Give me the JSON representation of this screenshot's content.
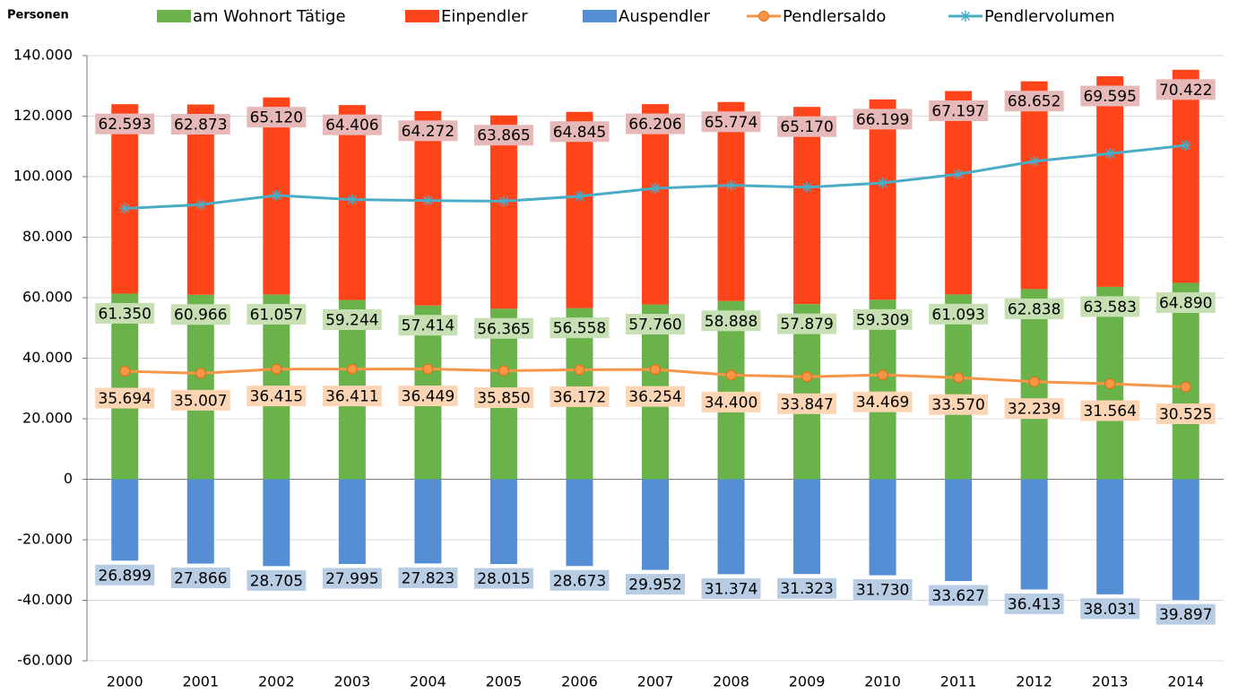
{
  "chart_data": {
    "type": "bar",
    "y_label": "Personen",
    "categories": [
      "2000",
      "2001",
      "2002",
      "2003",
      "2004",
      "2005",
      "2006",
      "2007",
      "2008",
      "2009",
      "2010",
      "2011",
      "2012",
      "2013",
      "2014"
    ],
    "series": [
      {
        "name": "am Wohnort Tätige",
        "color": "#6ab24a",
        "kind": "bar",
        "label_color": "#c6e0b4",
        "values": [
          61350,
          60966,
          61057,
          59244,
          57414,
          56365,
          56558,
          57760,
          58888,
          57879,
          59309,
          61093,
          62838,
          63583,
          64890
        ],
        "value_labels": [
          "61.350",
          "60.966",
          "61.057",
          "59.244",
          "57.414",
          "56.365",
          "56.558",
          "57.760",
          "58.888",
          "57.879",
          "59.309",
          "61.093",
          "62.838",
          "63.583",
          "64.890"
        ]
      },
      {
        "name": "Einpendler",
        "color": "#ff4419",
        "kind": "bar",
        "label_color": "#e6b9b8",
        "values": [
          62593,
          62873,
          65120,
          64406,
          64272,
          63865,
          64845,
          66206,
          65774,
          65170,
          66199,
          67197,
          68652,
          69595,
          70422
        ],
        "value_labels": [
          "62.593",
          "62.873",
          "65.120",
          "64.406",
          "64.272",
          "63.865",
          "64.845",
          "66.206",
          "65.774",
          "65.170",
          "66.199",
          "67.197",
          "68.652",
          "69.595",
          "70.422"
        ]
      },
      {
        "name": "Auspendler",
        "color": "#558ed5",
        "kind": "bar",
        "label_color": "#b8cce4",
        "values": [
          -26899,
          -27866,
          -28705,
          -27995,
          -27823,
          -28015,
          -28673,
          -29952,
          -31374,
          -31323,
          -31730,
          -33627,
          -36413,
          -38031,
          -39897
        ],
        "value_labels": [
          "26.899",
          "27.866",
          "28.705",
          "27.995",
          "27.823",
          "28.015",
          "28.673",
          "29.952",
          "31.374",
          "31.323",
          "31.730",
          "33.627",
          "36.413",
          "38.031",
          "39.897"
        ]
      },
      {
        "name": "Pendlersaldo",
        "color": "#f79646",
        "kind": "line",
        "marker": "circle",
        "label_color": "#fcd5b4",
        "values": [
          35694,
          35007,
          36415,
          36411,
          36449,
          35850,
          36172,
          36254,
          34400,
          33847,
          34469,
          33570,
          32239,
          31564,
          30525
        ],
        "value_labels": [
          "35.694",
          "35.007",
          "36.415",
          "36.411",
          "36.449",
          "35.850",
          "36.172",
          "36.254",
          "34.400",
          "33.847",
          "34.469",
          "33.570",
          "32.239",
          "31.564",
          "30.525"
        ]
      },
      {
        "name": "Pendlervolumen",
        "color": "#4bacc6",
        "kind": "line",
        "marker": "star",
        "values": [
          89492,
          90739,
          93825,
          92401,
          92095,
          91880,
          93518,
          96158,
          97148,
          96493,
          97929,
          100824,
          105065,
          107626,
          110319
        ]
      }
    ],
    "ylim": [
      -60000,
      140000
    ],
    "yticks": [
      {
        "value": -60000,
        "label": "-60.000"
      },
      {
        "value": -40000,
        "label": "-40.000"
      },
      {
        "value": -20000,
        "label": "-20.000"
      },
      0,
      {
        "value": 20000,
        "label": "20.000"
      },
      {
        "value": 40000,
        "label": "40.000"
      },
      {
        "value": 60000,
        "label": "60.000"
      },
      {
        "value": 80000,
        "label": "80.000"
      },
      {
        "value": 100000,
        "label": "100.000"
      },
      {
        "value": 120000,
        "label": "120.000"
      },
      {
        "value": 140000,
        "label": "140.000"
      }
    ],
    "grid": true,
    "legend": "top"
  }
}
